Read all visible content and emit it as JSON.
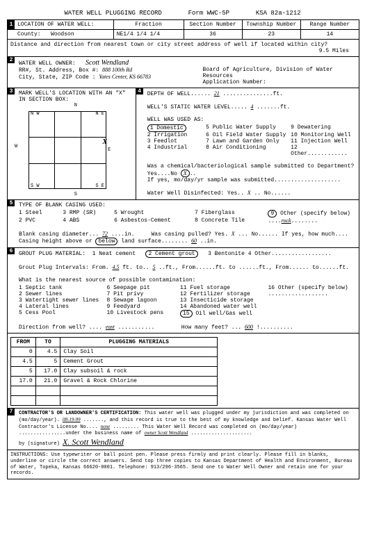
{
  "header": {
    "title": "WATER WELL PLUGGING RECORD",
    "form_no": "Form WWC-5P",
    "ksa": "KSA 82a-1212"
  },
  "loc": {
    "heading": "LOCATION OF WATER WELL:",
    "county_label": "County:",
    "county": "Woodson",
    "fraction_label": "Fraction",
    "fraction": "NE1/4   1/4   1/4",
    "section_label": "Section Number",
    "section": "36",
    "township_label": "Township Number",
    "township": "23",
    "range_label": "Range Number",
    "range": "14",
    "distance_label": "Distance and direction from nearest town or city street address of well if located within city?",
    "distance": "9.5 Miles"
  },
  "owner": {
    "heading": "WATER WELL OWNER:",
    "name": "Scott Wendland",
    "addr_label": "RR#, St. Address, Box #:",
    "addr": "888 100th Rd",
    "city_label": "City, State, ZIP Code :",
    "city": "Yates Center, KS 66783",
    "board": "Board of Agriculture, Division of Water Resources",
    "appno_label": "Application Number:"
  },
  "mark": {
    "heading": "MARK WELL'S LOCATION WITH AN \"X\" IN SECTION BOX:",
    "compass": {
      "n": "N",
      "s": "S",
      "e": "E",
      "w": "W",
      "nw": "N W",
      "ne": "N E",
      "sw": "S W",
      "se": "S E"
    },
    "x_mark": "X"
  },
  "depth": {
    "depth_label": "DEPTH OF WELL",
    "depth": "21",
    "depth_unit": "ft.",
    "static_label": "WELL'S STATIC WATER LEVEL",
    "static": "4",
    "static_unit": "ft.",
    "used_label": "WELL WAS USED AS:",
    "uses": [
      [
        "1 Domestic",
        "5 Public Water Supply",
        "9 Dewatering"
      ],
      [
        "2 Irrigation",
        "6 Oil Field Water Supply",
        "10 Monitoring Well"
      ],
      [
        "3 Feedlot",
        "7 Lawn and Garden Only",
        "11 Injection Well"
      ],
      [
        "4 Industrial",
        "8 Air Conditioning",
        "12 Other............"
      ]
    ],
    "chem_label": "Was a chemical/bacteriological sample submitted to Department? Yes....No",
    "chem_date": "If yes, mo/day/yr sample was submitted....................",
    "disinf_label": "Water Well Disinfected:  Yes..",
    "disinf_yes": "X",
    "disinf_no": ".. No......"
  },
  "casing": {
    "heading": "TYPE OF BLANK CASING USED:",
    "types": [
      [
        "1 Steel",
        "3 RMP (SR)",
        "5 Wrought",
        "7 Fiberglass",
        "9 Other (specify below)"
      ],
      [
        "2 PVC",
        "4 ABS",
        "6 Asbestos-Cement",
        "8 Concrete Tile",
        "....rock........"
      ]
    ],
    "diam_label": "Blank casing diameter...",
    "diam": "72",
    "diam_unit": "....in.",
    "pulled_label": "Was casing pulled?  Yes.",
    "pulled_yes": "X",
    "pulled_rest": "...  No......  If yes, how much....",
    "height_label": "Casing height above or",
    "height_below": "below",
    "height_rest": "land surface........",
    "height_val": "60",
    "height_unit": "..in."
  },
  "grout": {
    "heading": "GROUT PLUG MATERIAL:",
    "opts": "1 Neat cement",
    "opt_circled": "2 Cement grout",
    "opts2": "3 Bentonite    4 Other..................",
    "intervals": "Grout Plug Intervals:   From.",
    "int_from1": "4.5",
    "int_mid": "ft. to..",
    "int_to1": "5",
    "int_rest": "..ft., From......ft.  to ......ft., From...... to......ft.",
    "contam_label": "What is the nearest source of possible contamination:",
    "contam": [
      [
        "1 Septic tank",
        "6 Seepage pit",
        "11 Fuel storage",
        "16 Other (specify below)"
      ],
      [
        "2 Sewer lines",
        "7 Pit privy",
        "12 Fertilizer storage",
        ".................."
      ],
      [
        "3 Watertight sewer lines",
        "8 Sewage lagoon",
        "13 Insecticide storage",
        ""
      ],
      [
        "4 Lateral lines",
        "9 Feedyard",
        "14 Abandoned water well",
        ""
      ],
      [
        "5 Cess Pool",
        "10 Livestock pens",
        "15 Oil well/Gas well",
        ""
      ]
    ],
    "dir_label": "Direction from well? ....",
    "dir": "east",
    "dir_dots": "...........",
    "feet_label": "How many feet? ...",
    "feet": "600",
    "feet_dots": "!.........."
  },
  "table": {
    "h1": "FROM",
    "h2": "TO",
    "h3": "PLUGGING MATERIALS",
    "rows": [
      [
        "0",
        "4.5",
        "Clay Soil"
      ],
      [
        "4.5",
        "5",
        "Cement Grout"
      ],
      [
        "5",
        "17.0",
        "Clay subsoil & rock"
      ],
      [
        "17.0",
        "21.0",
        "Gravel & Rock Chlorine"
      ],
      [
        "",
        "",
        ""
      ],
      [
        "",
        "",
        ""
      ]
    ]
  },
  "cert": {
    "heading": "CONTRACTOR'S OR LANDOWNER'S CERTIFICATION:",
    "text1": "This water well was plugged under my jurisdiction and was completed on (mo/day/year).",
    "date": "08-19-99",
    "text2": "......., and this record is true to the best of my knowledge and belief. Kansas Water Well Contractor's License No....",
    "license": "none",
    "text3": "......... This Water Well Record was completed on (mo/day/year) ................under the business name of",
    "business": "owner  Scott Wendland",
    "sig_label": "by (signature)",
    "signature": "X. Scott Wendland"
  },
  "footer": {
    "text": "INSTRUCTIONS: Use typewriter or ball point pen. Please press firmly and print clearly. Please fill in blanks, underline or circle the correct answers. Send top three copies to Kansas Department of Health and Environment, Bureau of Water, Topeka, Kansas 66620-0001. Telephone: 913/296-3565. Send one to Water Well Owner and retain one for your records."
  }
}
